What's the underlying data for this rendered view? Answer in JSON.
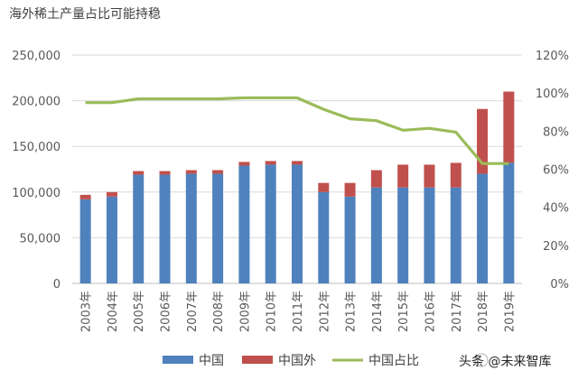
{
  "chart_data": {
    "type": "bar",
    "stacked": true,
    "title": "海外稀土产量占比可能持稳",
    "categories": [
      "2003年",
      "2004年",
      "2005年",
      "2006年",
      "2007年",
      "2008年",
      "2009年",
      "2010年",
      "2011年",
      "2012年",
      "2013年",
      "2014年",
      "2015年",
      "2016年",
      "2017年",
      "2018年",
      "2019年"
    ],
    "series": [
      {
        "name": "中国",
        "kind": "bar",
        "axis": "left",
        "color": "#4f81bd",
        "values": [
          92000,
          95000,
          119000,
          119000,
          120000,
          120000,
          129000,
          130000,
          130000,
          100000,
          95000,
          105000,
          105000,
          105000,
          105000,
          120000,
          132000
        ]
      },
      {
        "name": "中国外",
        "kind": "bar",
        "axis": "left",
        "color": "#c0504d",
        "values": [
          5000,
          5000,
          4000,
          4000,
          4000,
          4000,
          4000,
          4000,
          4000,
          10000,
          15000,
          19000,
          25000,
          25000,
          27000,
          71000,
          78000
        ]
      },
      {
        "name": "中国占比",
        "kind": "line",
        "axis": "right",
        "color": "#9bbb59",
        "values": [
          0.95,
          0.95,
          0.97,
          0.97,
          0.97,
          0.97,
          0.975,
          0.975,
          0.975,
          0.915,
          0.865,
          0.855,
          0.805,
          0.815,
          0.795,
          0.63,
          0.63
        ]
      }
    ],
    "y_left": {
      "min": 0,
      "max": 250000,
      "ticks": [
        "0",
        "50,000",
        "100,000",
        "150,000",
        "200,000",
        "250,000"
      ]
    },
    "y_right": {
      "min": 0,
      "max": 1.2,
      "ticks": [
        "0%",
        "20%",
        "40%",
        "60%",
        "80%",
        "100%",
        "120%"
      ]
    },
    "grid": true,
    "legend_position": "bottom"
  },
  "watermark": {
    "text": "头条 @未来智库"
  }
}
